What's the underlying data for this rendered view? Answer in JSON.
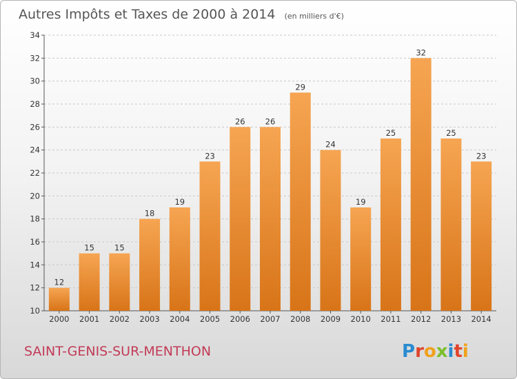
{
  "chart_data": {
    "type": "bar",
    "title": "Autres Impôts et Taxes de 2000 à 2014",
    "subtitle": "(en milliers d'€)",
    "xlabel": "",
    "ylabel": "",
    "categories": [
      "2000",
      "2001",
      "2002",
      "2003",
      "2004",
      "2005",
      "2006",
      "2007",
      "2008",
      "2009",
      "2010",
      "2011",
      "2012",
      "2013",
      "2014"
    ],
    "values": [
      12,
      15,
      15,
      18,
      19,
      23,
      26,
      26,
      29,
      24,
      19,
      25,
      32,
      25,
      23
    ],
    "ylim": [
      10,
      34
    ],
    "yticks": [
      10,
      12,
      14,
      16,
      18,
      20,
      22,
      24,
      26,
      28,
      30,
      32,
      34
    ],
    "grid": "horizontal-dashed",
    "legend": "none"
  },
  "footer": {
    "commune": "SAINT-GENIS-SUR-MENTHON",
    "brand": "Proxiti"
  },
  "colors": {
    "bar_top": "#f6a552",
    "bar_bottom": "#d87418",
    "commune_text": "#c23b57",
    "brand_letters": [
      "#2a8bd0",
      "#e0442b",
      "#f0a11c",
      "#7bbf2c",
      "#2a8bd0",
      "#e0442b",
      "#f0a11c"
    ]
  }
}
